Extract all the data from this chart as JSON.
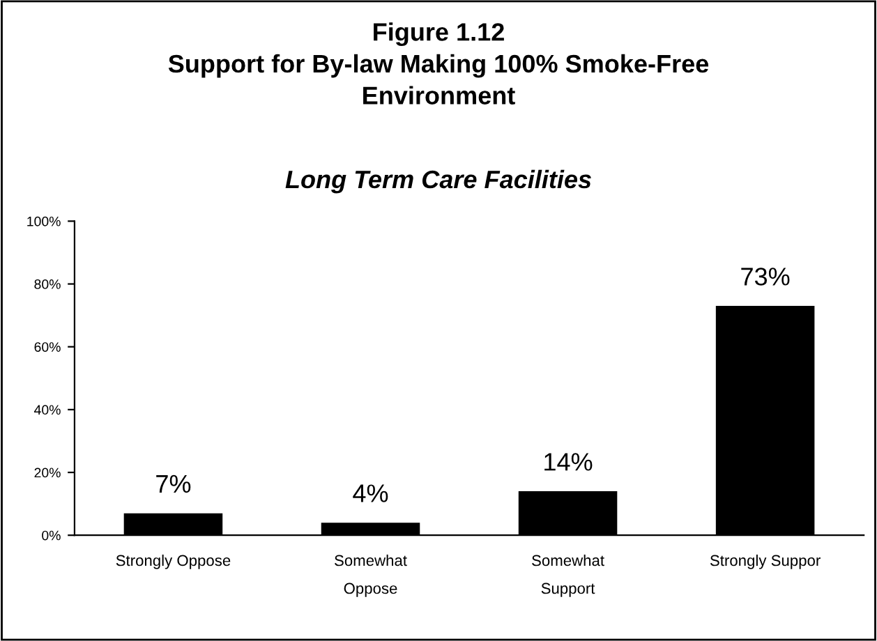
{
  "chart_data": {
    "type": "bar",
    "title": "Figure 1.12\nSupport for By-law Making 100% Smoke-Free\nEnvironment",
    "subtitle": "Long Term Care Facilities",
    "categories": [
      "Strongly Oppose",
      "Somewhat\nOppose",
      "Somewhat\nSupport",
      "Strongly Suppor"
    ],
    "values": [
      7,
      4,
      14,
      73
    ],
    "color": "#000000",
    "value_labels": [
      "7%",
      "4%",
      "14%",
      "73%"
    ],
    "ylim": [
      0,
      100
    ],
    "yticks": [
      {
        "value": 0,
        "label": "0%"
      },
      {
        "value": 20,
        "label": "20%"
      },
      {
        "value": 40,
        "label": "40%"
      },
      {
        "value": 60,
        "label": "60%"
      },
      {
        "value": 80,
        "label": "80%"
      },
      {
        "value": 100,
        "label": "100%"
      }
    ],
    "grid": false,
    "legend": false
  }
}
